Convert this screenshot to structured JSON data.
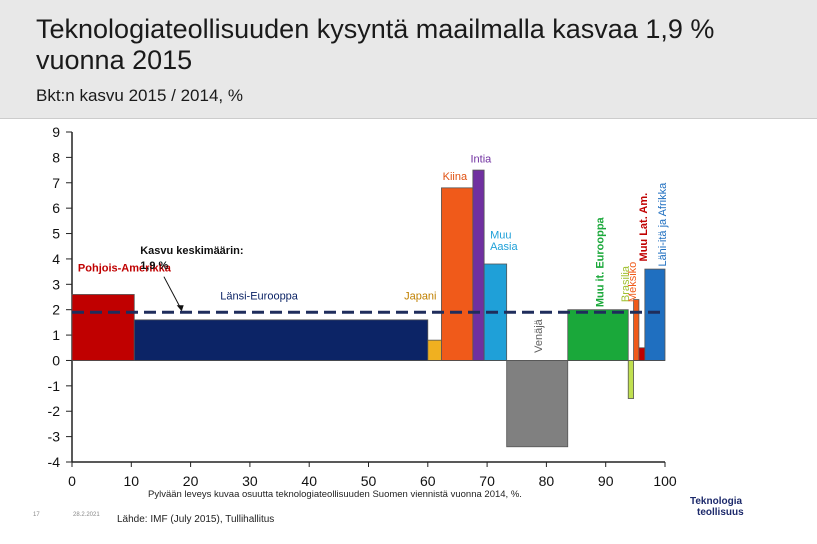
{
  "title": "Teknologiateollisuuden kysyntä maailmalla kasvaa 1,9 % vuonna 2015",
  "subtitle": "Bkt:n kasvu 2015 / 2014, %",
  "footnote": "Pylvään leveys kuvaa osuutta teknologiateollisuuden Suomen viennistä vuonna 2014, %.",
  "source": "Lähde: IMF (July 2015), Tullihallitus",
  "page_number": "17",
  "date": "28.2.2021",
  "logo": {
    "line1": "Teknologia",
    "line2": "teollisuus"
  },
  "chart_data": {
    "type": "bar",
    "variable_width": true,
    "xlim": [
      0,
      100
    ],
    "ylim": [
      -4,
      9
    ],
    "xticks": [
      0,
      10,
      20,
      30,
      40,
      50,
      60,
      70,
      80,
      90,
      100
    ],
    "yticks": [
      -4,
      -3,
      -2,
      -1,
      0,
      1,
      2,
      3,
      4,
      5,
      6,
      7,
      8,
      9
    ],
    "average": {
      "value": 1.9,
      "label_line1": "Kasvu keskimäärin:",
      "label_line2": "1,9 %"
    },
    "bars": [
      {
        "name": "Pohjois-Amerikka",
        "x0": 0,
        "x1": 10.5,
        "value": 2.6,
        "color": "#c00000"
      },
      {
        "name": "Länsi-Eurooppa",
        "x0": 10.5,
        "x1": 60,
        "value": 1.6,
        "color": "#0c2466"
      },
      {
        "name": "Japani",
        "x0": 60,
        "x1": 62.3,
        "value": 0.8,
        "color": "#f0b020"
      },
      {
        "name": "Kiina",
        "x0": 62.3,
        "x1": 67.6,
        "value": 6.8,
        "color": "#f05a1a"
      },
      {
        "name": "Intia",
        "x0": 67.6,
        "x1": 69.5,
        "value": 7.5,
        "color": "#7030a0"
      },
      {
        "name": "Muu Aasia",
        "x0": 69.5,
        "x1": 73.3,
        "value": 3.8,
        "color": "#1fa0d8"
      },
      {
        "name": "Venäjä",
        "x0": 73.3,
        "x1": 83.6,
        "value": -3.4,
        "color": "#808080"
      },
      {
        "name": "Muu it. Eurooppa",
        "x0": 83.6,
        "x1": 93.8,
        "value": 2.0,
        "color": "#1aa83a"
      },
      {
        "name": "Brasilia",
        "x0": 93.8,
        "x1": 94.7,
        "value": -1.5,
        "color": "#c0e050"
      },
      {
        "name": "Meksiko",
        "x0": 94.7,
        "x1": 95.6,
        "value": 2.4,
        "color": "#f05a1a"
      },
      {
        "name": "Muu Lat. Am.",
        "x0": 95.6,
        "x1": 96.6,
        "value": 0.5,
        "color": "#c00000"
      },
      {
        "name": "Lähi-itä ja Afrikka",
        "x0": 96.6,
        "x1": 100,
        "value": 3.6,
        "color": "#1f6fc0"
      }
    ]
  }
}
